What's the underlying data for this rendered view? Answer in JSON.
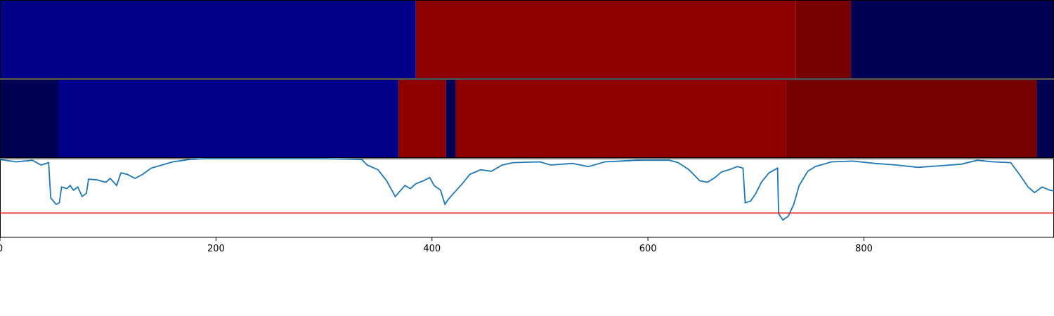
{
  "colors": {
    "threshold_line": "#e31a1c",
    "signal_line": "#1f77b4",
    "axis": "#000000"
  },
  "chart_data": {
    "type": "line",
    "x_range": [
      0,
      976
    ],
    "x_ticks": [
      {
        "value": 0,
        "label": "0"
      },
      {
        "value": 200,
        "label": "200"
      },
      {
        "value": 400,
        "label": "400"
      },
      {
        "value": 600,
        "label": "600"
      },
      {
        "value": 800,
        "label": "800"
      }
    ],
    "strips": [
      {
        "name": "",
        "segments": [
          {
            "start": 0,
            "end": 385,
            "color": "#000088"
          },
          {
            "start": 385,
            "end": 737,
            "color": "#8e0000"
          },
          {
            "start": 737,
            "end": 788,
            "color": "#770000"
          },
          {
            "start": 788,
            "end": 976,
            "color": "#000055"
          }
        ]
      },
      {
        "name": "",
        "segments": [
          {
            "start": 0,
            "end": 54,
            "color": "#000055"
          },
          {
            "start": 54,
            "end": 369,
            "color": "#000088"
          },
          {
            "start": 369,
            "end": 413,
            "color": "#8e0000"
          },
          {
            "start": 413,
            "end": 422,
            "color": "#000055"
          },
          {
            "start": 422,
            "end": 728,
            "color": "#8e0000"
          },
          {
            "start": 728,
            "end": 960,
            "color": "#770000"
          },
          {
            "start": 960,
            "end": 976,
            "color": "#000055"
          }
        ]
      }
    ],
    "signal": {
      "y_range": [
        0,
        1
      ],
      "threshold": 0.31,
      "points": [
        [
          0,
          0.99
        ],
        [
          15,
          0.96
        ],
        [
          30,
          0.98
        ],
        [
          38,
          0.92
        ],
        [
          45,
          0.95
        ],
        [
          47,
          0.5
        ],
        [
          52,
          0.42
        ],
        [
          55,
          0.44
        ],
        [
          57,
          0.64
        ],
        [
          62,
          0.62
        ],
        [
          65,
          0.66
        ],
        [
          68,
          0.6
        ],
        [
          72,
          0.64
        ],
        [
          76,
          0.52
        ],
        [
          80,
          0.56
        ],
        [
          82,
          0.74
        ],
        [
          90,
          0.73
        ],
        [
          98,
          0.7
        ],
        [
          102,
          0.75
        ],
        [
          108,
          0.66
        ],
        [
          112,
          0.82
        ],
        [
          118,
          0.8
        ],
        [
          125,
          0.75
        ],
        [
          132,
          0.8
        ],
        [
          140,
          0.88
        ],
        [
          150,
          0.92
        ],
        [
          160,
          0.96
        ],
        [
          175,
          0.99
        ],
        [
          190,
          1.0
        ],
        [
          300,
          1.0
        ],
        [
          335,
          0.99
        ],
        [
          340,
          0.92
        ],
        [
          350,
          0.86
        ],
        [
          358,
          0.72
        ],
        [
          366,
          0.52
        ],
        [
          370,
          0.58
        ],
        [
          375,
          0.66
        ],
        [
          380,
          0.62
        ],
        [
          385,
          0.68
        ],
        [
          392,
          0.72
        ],
        [
          398,
          0.76
        ],
        [
          402,
          0.66
        ],
        [
          408,
          0.6
        ],
        [
          412,
          0.42
        ],
        [
          415,
          0.48
        ],
        [
          420,
          0.56
        ],
        [
          428,
          0.68
        ],
        [
          435,
          0.8
        ],
        [
          445,
          0.86
        ],
        [
          455,
          0.84
        ],
        [
          465,
          0.92
        ],
        [
          475,
          0.95
        ],
        [
          500,
          0.96
        ],
        [
          510,
          0.92
        ],
        [
          530,
          0.94
        ],
        [
          545,
          0.9
        ],
        [
          560,
          0.96
        ],
        [
          590,
          0.98
        ],
        [
          620,
          0.98
        ],
        [
          628,
          0.95
        ],
        [
          638,
          0.86
        ],
        [
          648,
          0.72
        ],
        [
          655,
          0.7
        ],
        [
          662,
          0.76
        ],
        [
          668,
          0.83
        ],
        [
          675,
          0.86
        ],
        [
          683,
          0.9
        ],
        [
          688,
          0.88
        ],
        [
          690,
          0.44
        ],
        [
          695,
          0.46
        ],
        [
          700,
          0.56
        ],
        [
          705,
          0.7
        ],
        [
          712,
          0.82
        ],
        [
          720,
          0.88
        ],
        [
          721,
          0.3
        ],
        [
          725,
          0.22
        ],
        [
          730,
          0.27
        ],
        [
          735,
          0.42
        ],
        [
          740,
          0.66
        ],
        [
          748,
          0.84
        ],
        [
          755,
          0.9
        ],
        [
          770,
          0.96
        ],
        [
          790,
          0.97
        ],
        [
          810,
          0.94
        ],
        [
          830,
          0.92
        ],
        [
          850,
          0.89
        ],
        [
          870,
          0.91
        ],
        [
          890,
          0.93
        ],
        [
          905,
          0.98
        ],
        [
          920,
          0.96
        ],
        [
          936,
          0.95
        ],
        [
          945,
          0.78
        ],
        [
          952,
          0.64
        ],
        [
          958,
          0.57
        ],
        [
          965,
          0.64
        ],
        [
          972,
          0.6
        ],
        [
          976,
          0.59
        ]
      ]
    }
  }
}
